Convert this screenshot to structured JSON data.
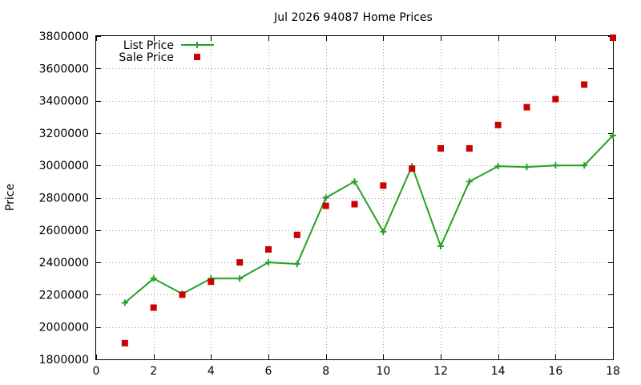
{
  "chart_data": {
    "type": "line",
    "title": "Jul 2026 94087 Home Prices",
    "xlabel": "",
    "ylabel": "Price",
    "xlim": [
      0,
      18
    ],
    "ylim": [
      1800000,
      3800000
    ],
    "x_ticks": [
      0,
      2,
      4,
      6,
      8,
      10,
      12,
      14,
      16,
      18
    ],
    "y_ticks": [
      1800000,
      2000000,
      2200000,
      2400000,
      2600000,
      2800000,
      3000000,
      3200000,
      3400000,
      3600000,
      3800000
    ],
    "grid": true,
    "legend_position": "top-left",
    "series": [
      {
        "name": "List Price",
        "style": "line-cross",
        "color": "#22a222",
        "x": [
          1,
          2,
          3,
          4,
          5,
          6,
          7,
          8,
          9,
          10,
          11,
          12,
          13,
          14,
          15,
          16,
          17,
          18
        ],
        "values": [
          2150000,
          2300000,
          2205000,
          2300000,
          2300000,
          2400000,
          2390000,
          2800000,
          2900000,
          2590000,
          2995000,
          2500000,
          2900000,
          2995000,
          2990000,
          3000000,
          3000000,
          3185000
        ]
      },
      {
        "name": "Sale Price",
        "style": "square",
        "color": "#cc0000",
        "x": [
          1,
          2,
          3,
          4,
          5,
          6,
          7,
          8,
          9,
          10,
          11,
          12,
          13,
          14,
          15,
          16,
          17,
          18
        ],
        "values": [
          1900000,
          2120000,
          2200000,
          2280000,
          2400000,
          2480000,
          2570000,
          2750000,
          2760000,
          2875000,
          2980000,
          3105000,
          3105000,
          3250000,
          3360000,
          3410000,
          3500000,
          3790000
        ]
      }
    ]
  }
}
